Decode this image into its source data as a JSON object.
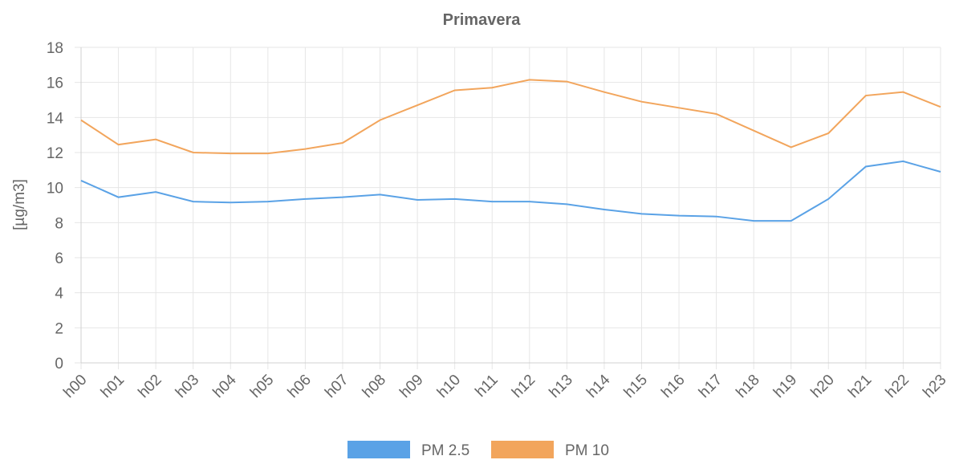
{
  "chart_data": {
    "type": "line",
    "title": "Primavera",
    "y_label": "[µg/m3]",
    "categories": [
      "h00",
      "h01",
      "h02",
      "h03",
      "h04",
      "h05",
      "h06",
      "h07",
      "h08",
      "h09",
      "h10",
      "h11",
      "h12",
      "h13",
      "h14",
      "h15",
      "h16",
      "h17",
      "h18",
      "h19",
      "h20",
      "h21",
      "h22",
      "h23"
    ],
    "series": [
      {
        "name": "PM 2.5",
        "color": "#5aa2e6",
        "values": [
          10.4,
          9.45,
          9.75,
          9.2,
          9.15,
          9.2,
          9.35,
          9.45,
          9.6,
          9.3,
          9.35,
          9.2,
          9.2,
          9.05,
          8.75,
          8.5,
          8.4,
          8.35,
          8.1,
          8.1,
          9.35,
          11.2,
          11.5,
          10.9
        ]
      },
      {
        "name": "PM 10",
        "color": "#f2a55c",
        "values": [
          13.85,
          12.45,
          12.75,
          12.0,
          11.95,
          11.95,
          12.2,
          12.55,
          13.85,
          14.7,
          15.55,
          15.7,
          16.15,
          16.05,
          15.45,
          14.9,
          14.55,
          14.2,
          13.25,
          12.3,
          13.1,
          15.25,
          15.45,
          14.6
        ]
      }
    ],
    "ylim": [
      0,
      18
    ],
    "yticks": [
      0,
      2,
      4,
      6,
      8,
      10,
      12,
      14,
      16,
      18
    ],
    "grid": true,
    "legend": "bottom"
  }
}
